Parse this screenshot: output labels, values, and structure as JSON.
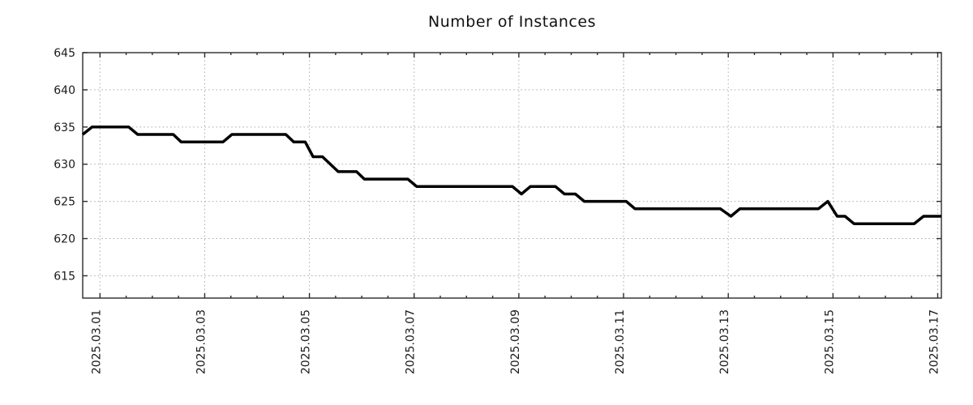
{
  "page": {
    "title": "Number of Instances"
  },
  "colors": {
    "background": "#ffffff",
    "series_line": "#000000",
    "grid": "#a9a9a9",
    "border": "#2b2b2b",
    "tick_text": "#1a1a1a",
    "title_text": "#111111"
  },
  "chart_data": {
    "type": "line",
    "title": "Number of Instances",
    "xlabel": "",
    "ylabel": "",
    "grid": true,
    "legend": false,
    "x_axis": {
      "kind": "date",
      "xlim_days": [
        -0.33,
        16.07
      ],
      "minor_tick_step_days": 0.5,
      "major_ticks": [
        {
          "d": 0,
          "label": "2025.03.01"
        },
        {
          "d": 2,
          "label": "2025.03.03"
        },
        {
          "d": 4,
          "label": "2025.03.05"
        },
        {
          "d": 6,
          "label": "2025.03.07"
        },
        {
          "d": 8,
          "label": "2025.03.09"
        },
        {
          "d": 10,
          "label": "2025.03.11"
        },
        {
          "d": 12,
          "label": "2025.03.13"
        },
        {
          "d": 14,
          "label": "2025.03.15"
        },
        {
          "d": 16,
          "label": "2025.03.17"
        }
      ]
    },
    "y_axis": {
      "ylim": [
        612,
        645
      ],
      "major_ticks": [
        615,
        620,
        625,
        630,
        635,
        640,
        645
      ]
    },
    "series": [
      {
        "name": "instances",
        "color": "#000000",
        "line_width": 3.5,
        "points": [
          [
            -0.33,
            634
          ],
          [
            -0.15,
            635
          ],
          [
            0.55,
            635
          ],
          [
            0.72,
            634
          ],
          [
            1.4,
            634
          ],
          [
            1.55,
            633
          ],
          [
            2.35,
            633
          ],
          [
            2.52,
            634
          ],
          [
            3.55,
            634
          ],
          [
            3.7,
            633
          ],
          [
            3.92,
            633
          ],
          [
            4.07,
            631
          ],
          [
            4.25,
            631
          ],
          [
            4.55,
            629
          ],
          [
            4.9,
            629
          ],
          [
            5.05,
            628
          ],
          [
            5.88,
            628
          ],
          [
            6.05,
            627
          ],
          [
            7.88,
            627
          ],
          [
            8.05,
            626
          ],
          [
            8.22,
            627
          ],
          [
            8.7,
            627
          ],
          [
            8.87,
            626
          ],
          [
            9.08,
            626
          ],
          [
            9.25,
            625
          ],
          [
            10.05,
            625
          ],
          [
            10.22,
            624
          ],
          [
            11.85,
            624
          ],
          [
            12.05,
            623
          ],
          [
            12.22,
            624
          ],
          [
            13.72,
            624
          ],
          [
            13.9,
            625
          ],
          [
            14.08,
            623
          ],
          [
            14.23,
            623
          ],
          [
            14.4,
            622
          ],
          [
            15.55,
            622
          ],
          [
            15.73,
            623
          ],
          [
            16.07,
            623
          ]
        ]
      }
    ]
  }
}
